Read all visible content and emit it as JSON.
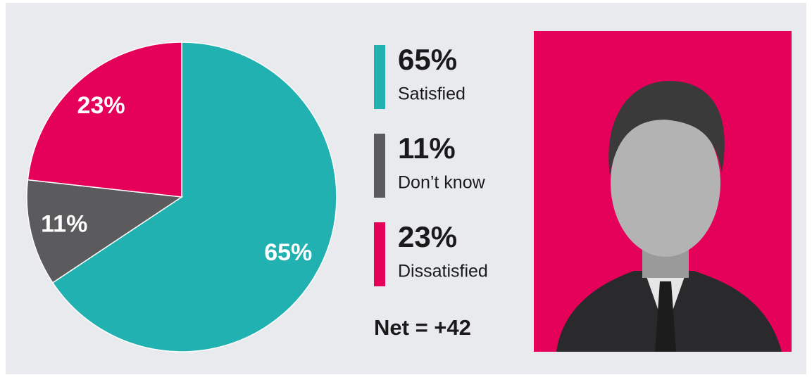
{
  "chart_data": {
    "type": "pie",
    "categories": [
      "Satisfied",
      "Don’t know",
      "Dissatisfied"
    ],
    "values": [
      65,
      11,
      23
    ],
    "value_labels": [
      "65%",
      "11%",
      "23%"
    ],
    "colors": [
      "#20b1b0",
      "#5b5b5d",
      "#e5005a"
    ],
    "annotation": "Net = +42"
  }
}
